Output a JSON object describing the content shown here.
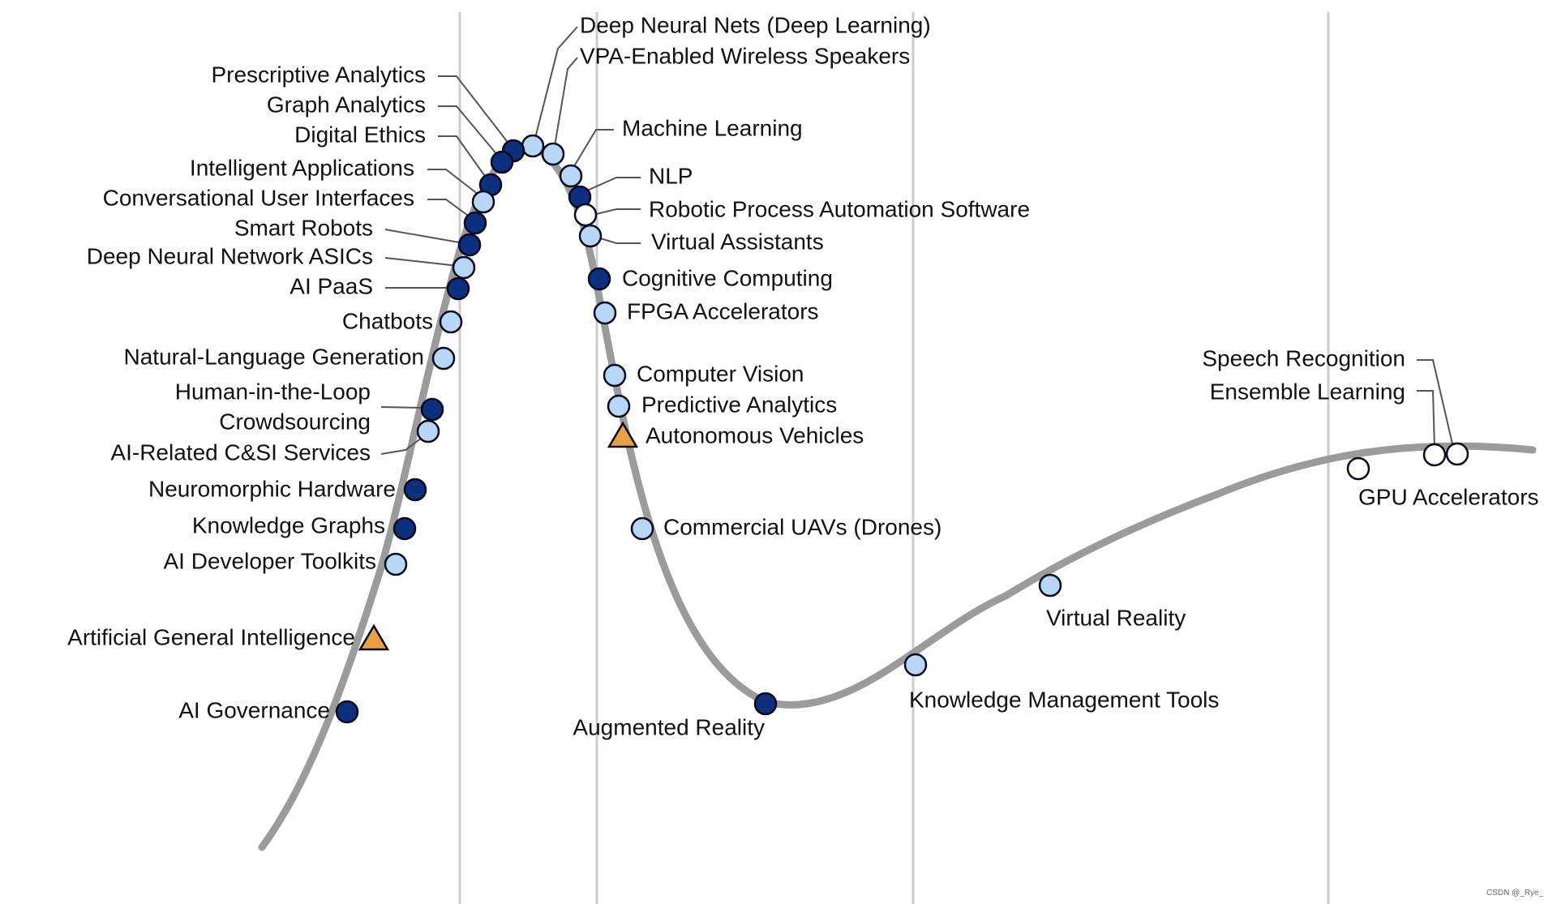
{
  "colors": {
    "dark": "#0e2f7d",
    "light": "#b8d6f5",
    "white": "#ffffff",
    "triangle": "#e9a047",
    "outline": "#0a0a1e",
    "curve": "#9b9b9b",
    "gridline": "#cccccc",
    "leader": "#555555"
  },
  "credit": "CSDN @_Rye_",
  "items": [
    {
      "label": "Deep Neural Nets (Deep Learning)",
      "marker": "light"
    },
    {
      "label": "VPA-Enabled Wireless Speakers",
      "marker": "light"
    },
    {
      "label": "Prescriptive Analytics",
      "marker": "dark"
    },
    {
      "label": "Graph Analytics",
      "marker": "dark"
    },
    {
      "label": "Digital Ethics",
      "marker": "dark"
    },
    {
      "label": "Intelligent Applications",
      "marker": "light"
    },
    {
      "label": "Conversational User Interfaces",
      "marker": "dark"
    },
    {
      "label": "Smart Robots",
      "marker": "dark"
    },
    {
      "label": "Deep Neural Network ASICs",
      "marker": "light"
    },
    {
      "label": "AI PaaS",
      "marker": "dark"
    },
    {
      "label": "Chatbots",
      "marker": "light"
    },
    {
      "label": "Natural-Language Generation",
      "marker": "light"
    },
    {
      "label": "Human-in-the-Loop",
      "marker": "dark"
    },
    {
      "label": "Crowdsourcing",
      "marker": "light"
    },
    {
      "label": "AI-Related C&SI Services",
      "marker": "light"
    },
    {
      "label": "Neuromorphic Hardware",
      "marker": "dark"
    },
    {
      "label": "Knowledge Graphs",
      "marker": "dark"
    },
    {
      "label": "AI Developer Toolkits",
      "marker": "light"
    },
    {
      "label": "Artificial General Intelligence",
      "marker": "triangle"
    },
    {
      "label": "AI Governance",
      "marker": "dark"
    },
    {
      "label": "Machine Learning",
      "marker": "light"
    },
    {
      "label": "NLP",
      "marker": "dark"
    },
    {
      "label": "Robotic Process Automation Software",
      "marker": "white"
    },
    {
      "label": "Virtual Assistants",
      "marker": "light"
    },
    {
      "label": "Cognitive Computing",
      "marker": "dark"
    },
    {
      "label": "FPGA Accelerators",
      "marker": "light"
    },
    {
      "label": "Computer Vision",
      "marker": "light"
    },
    {
      "label": "Predictive Analytics",
      "marker": "light"
    },
    {
      "label": "Autonomous Vehicles",
      "marker": "triangle"
    },
    {
      "label": "Commercial UAVs (Drones)",
      "marker": "light"
    },
    {
      "label": "Augmented Reality",
      "marker": "dark"
    },
    {
      "label": "Knowledge Management Tools",
      "marker": "light"
    },
    {
      "label": "Virtual Reality",
      "marker": "light"
    },
    {
      "label": "Speech Recognition",
      "marker": "white"
    },
    {
      "label": "Ensemble Learning",
      "marker": "white"
    },
    {
      "label": "GPU Accelerators",
      "marker": "white"
    }
  ]
}
